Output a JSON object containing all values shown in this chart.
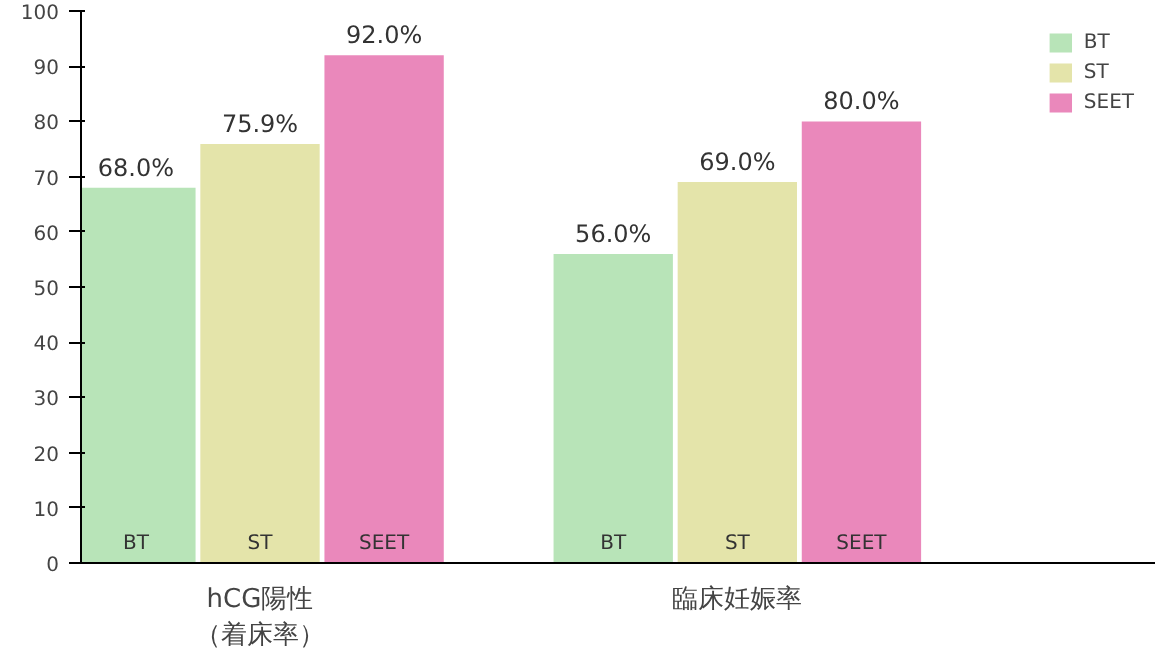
{
  "chart_data": {
    "type": "bar",
    "categories": [
      "hCG陽性（着床率）",
      "臨床妊娠率"
    ],
    "series": [
      {
        "name": "BT",
        "color": "#b8e4b8",
        "values": [
          68.0,
          56.0
        ],
        "value_labels": [
          "68.0%",
          "56.0%"
        ]
      },
      {
        "name": "ST",
        "color": "#e4e4aa",
        "values": [
          75.9,
          69.0
        ],
        "value_labels": [
          "75.9%",
          "69.0%"
        ]
      },
      {
        "name": "SEET",
        "color": "#ea88bb",
        "values": [
          92.0,
          80.0
        ],
        "value_labels": [
          "92.0%",
          "80.0%"
        ]
      }
    ],
    "ylim": [
      0,
      100
    ],
    "yticks": [
      0,
      10,
      20,
      30,
      40,
      50,
      60,
      70,
      80,
      90,
      100
    ],
    "legend": "top right",
    "grid": false
  }
}
